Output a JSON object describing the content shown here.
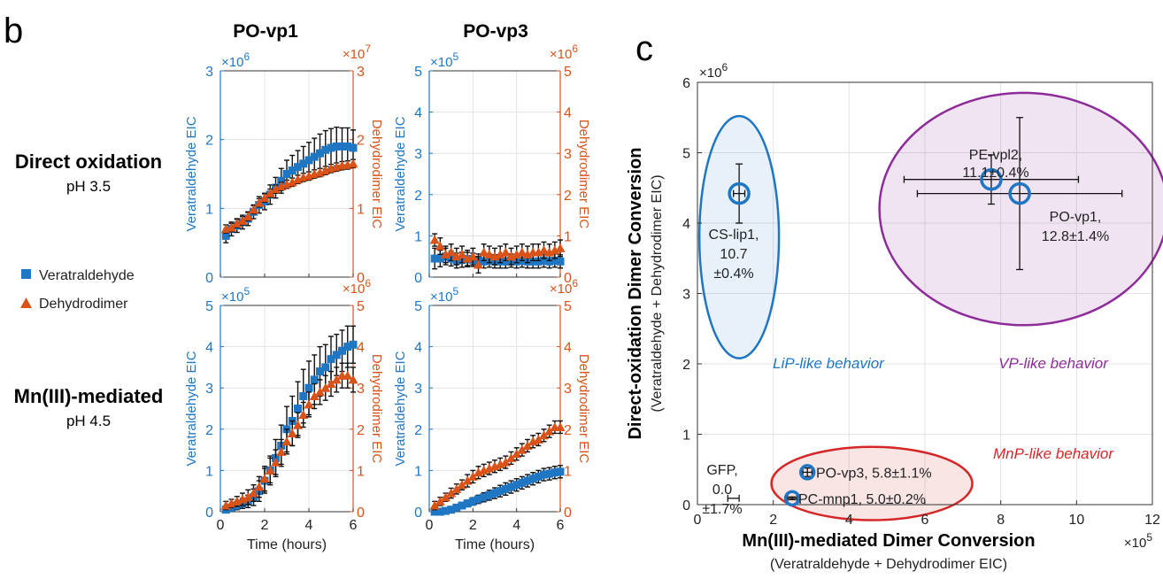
{
  "figure": {
    "panel_b_letter": "b",
    "panel_c_letter": "c",
    "row_labels": [
      {
        "title": "Direct oxidation",
        "sub": "pH 3.5"
      },
      {
        "title": "Mn(III)-mediated",
        "sub": "pH 4.5"
      }
    ],
    "legend": [
      {
        "label": "Veratraldehyde",
        "color": "#1f77c4",
        "marker": "square"
      },
      {
        "label": "Dehydrodimer",
        "color": "#d95319",
        "marker": "triangle"
      }
    ],
    "colors": {
      "left_axis": "#1f77c4",
      "right_axis": "#d95319",
      "grid": "#e3e3e3"
    }
  },
  "chart_data": [
    {
      "type": "scatter",
      "panel": "b",
      "title": "PO-vp1",
      "xlabel": "",
      "xlim": [
        0,
        6
      ],
      "ylabel": "Veratraldehyde EIC",
      "ylim": [
        0,
        3
      ],
      "y_multiplier": "×10^6",
      "yticks": [
        "0",
        "1",
        "2",
        "3"
      ],
      "y2label": "Dehydrodimer EIC",
      "y2lim": [
        0,
        3
      ],
      "y2_multiplier": "×10^7",
      "y2ticks": [
        "0",
        "1",
        "2",
        "3"
      ],
      "xticks": [],
      "series": [
        {
          "name": "Veratraldehyde",
          "axis": "left",
          "marker": "square",
          "x": [
            0.25,
            0.5,
            0.75,
            1,
            1.25,
            1.5,
            1.75,
            2,
            2.25,
            2.5,
            2.75,
            3,
            3.25,
            3.5,
            3.75,
            4,
            4.25,
            4.5,
            4.75,
            5,
            5.25,
            5.5,
            5.75,
            6
          ],
          "y": [
            0.6,
            0.7,
            0.75,
            0.8,
            0.85,
            0.95,
            1.05,
            1.1,
            1.2,
            1.3,
            1.4,
            1.5,
            1.55,
            1.6,
            1.65,
            1.7,
            1.75,
            1.8,
            1.85,
            1.88,
            1.9,
            1.9,
            1.9,
            1.88
          ],
          "err": [
            0.1,
            0.1,
            0.1,
            0.1,
            0.1,
            0.1,
            0.12,
            0.12,
            0.14,
            0.15,
            0.18,
            0.2,
            0.22,
            0.24,
            0.25,
            0.26,
            0.27,
            0.28,
            0.28,
            0.28,
            0.28,
            0.27,
            0.27,
            0.26
          ]
        },
        {
          "name": "Dehydrodimer",
          "axis": "right",
          "marker": "triangle",
          "x": [
            0.25,
            0.5,
            0.75,
            1,
            1.25,
            1.5,
            1.75,
            2,
            2.25,
            2.5,
            2.75,
            3,
            3.25,
            3.5,
            3.75,
            4,
            4.25,
            4.5,
            4.75,
            5,
            5.25,
            5.5,
            5.75,
            6
          ],
          "y": [
            0.7,
            0.72,
            0.78,
            0.82,
            0.88,
            0.98,
            1.08,
            1.15,
            1.22,
            1.28,
            1.32,
            1.35,
            1.38,
            1.42,
            1.45,
            1.47,
            1.5,
            1.52,
            1.55,
            1.58,
            1.6,
            1.62,
            1.63,
            1.65
          ],
          "err": [
            0.06,
            0.06,
            0.06,
            0.06,
            0.06,
            0.06,
            0.06,
            0.06,
            0.06,
            0.06,
            0.06,
            0.06,
            0.06,
            0.06,
            0.06,
            0.06,
            0.06,
            0.06,
            0.06,
            0.06,
            0.06,
            0.06,
            0.06,
            0.06
          ]
        }
      ]
    },
    {
      "type": "scatter",
      "panel": "b",
      "title": "PO-vp3",
      "xlabel": "",
      "xlim": [
        0,
        6
      ],
      "ylabel": "Veratraldehyde EIC",
      "ylim": [
        0,
        5
      ],
      "y_multiplier": "×10^5",
      "yticks": [
        "0",
        "1",
        "2",
        "3",
        "4",
        "5"
      ],
      "y2label": "Dehydrodimer EIC",
      "y2lim": [
        0,
        5
      ],
      "y2_multiplier": "×10^6",
      "y2ticks": [
        "0",
        "1",
        "2",
        "3",
        "4",
        "5"
      ],
      "xticks": [],
      "series": [
        {
          "name": "Veratraldehyde",
          "axis": "left",
          "marker": "square",
          "x": [
            0.25,
            0.5,
            0.75,
            1,
            1.25,
            1.5,
            1.75,
            2,
            2.25,
            2.5,
            2.75,
            3,
            3.25,
            3.5,
            3.75,
            4,
            4.25,
            4.5,
            4.75,
            5,
            5.25,
            5.5,
            5.75,
            6
          ],
          "y": [
            0.45,
            0.45,
            0.5,
            0.45,
            0.4,
            0.42,
            0.44,
            0.42,
            0.4,
            0.38,
            0.4,
            0.38,
            0.38,
            0.38,
            0.4,
            0.38,
            0.4,
            0.38,
            0.38,
            0.38,
            0.4,
            0.38,
            0.4,
            0.38
          ],
          "err": [
            0.25,
            0.2,
            0.2,
            0.18,
            0.18,
            0.18,
            0.16,
            0.16,
            0.16,
            0.16,
            0.16,
            0.16,
            0.16,
            0.16,
            0.16,
            0.16,
            0.16,
            0.16,
            0.16,
            0.16,
            0.16,
            0.16,
            0.16,
            0.16
          ]
        },
        {
          "name": "Dehydrodimer",
          "axis": "right",
          "marker": "triangle",
          "x": [
            0.25,
            0.5,
            0.75,
            1,
            1.25,
            1.5,
            1.75,
            2,
            2.25,
            2.5,
            2.75,
            3,
            3.25,
            3.5,
            3.75,
            4,
            4.25,
            4.5,
            4.75,
            5,
            5.25,
            5.5,
            5.75,
            6
          ],
          "y": [
            0.9,
            0.75,
            0.55,
            0.6,
            0.5,
            0.55,
            0.45,
            0.5,
            0.3,
            0.6,
            0.55,
            0.5,
            0.55,
            0.6,
            0.5,
            0.55,
            0.6,
            0.55,
            0.6,
            0.6,
            0.65,
            0.6,
            0.65,
            0.7
          ],
          "err": [
            0.15,
            0.2,
            0.2,
            0.2,
            0.2,
            0.2,
            0.2,
            0.2,
            0.2,
            0.2,
            0.2,
            0.2,
            0.2,
            0.2,
            0.2,
            0.2,
            0.2,
            0.2,
            0.2,
            0.2,
            0.2,
            0.2,
            0.2,
            0.2
          ]
        }
      ]
    },
    {
      "type": "scatter",
      "panel": "b",
      "title": "",
      "xlabel": "Time (hours)",
      "xlim": [
        0,
        6
      ],
      "xticks": [
        "0",
        "2",
        "4",
        "6"
      ],
      "ylabel": "Veratraldehyde EIC",
      "ylim": [
        0,
        5
      ],
      "y_multiplier": "×10^5",
      "yticks": [
        "0",
        "1",
        "2",
        "3",
        "4",
        "5"
      ],
      "y2label": "Dehydrodimer EIC",
      "y2lim": [
        0,
        5
      ],
      "y2_multiplier": "×10^6",
      "y2ticks": [
        "0",
        "1",
        "2",
        "3",
        "4",
        "5"
      ],
      "series": [
        {
          "name": "Veratraldehyde",
          "axis": "left",
          "marker": "square",
          "x": [
            0.25,
            0.5,
            0.75,
            1,
            1.25,
            1.5,
            1.75,
            2,
            2.25,
            2.5,
            2.75,
            3,
            3.25,
            3.5,
            3.75,
            4,
            4.25,
            4.5,
            4.75,
            5,
            5.25,
            5.5,
            5.75,
            6
          ],
          "y": [
            0.05,
            0.1,
            0.15,
            0.2,
            0.25,
            0.35,
            0.5,
            0.75,
            1.0,
            1.3,
            1.6,
            2.0,
            2.2,
            2.5,
            2.8,
            3.0,
            3.2,
            3.4,
            3.5,
            3.7,
            3.8,
            3.9,
            4.0,
            4.05
          ],
          "err": [
            0.05,
            0.08,
            0.1,
            0.12,
            0.15,
            0.2,
            0.25,
            0.3,
            0.35,
            0.45,
            0.5,
            0.55,
            0.6,
            0.65,
            0.65,
            0.65,
            0.6,
            0.6,
            0.55,
            0.55,
            0.5,
            0.5,
            0.5,
            0.45
          ]
        },
        {
          "name": "Dehydrodimer",
          "axis": "right",
          "marker": "triangle",
          "x": [
            0.25,
            0.5,
            0.75,
            1,
            1.25,
            1.5,
            1.75,
            2,
            2.25,
            2.5,
            2.75,
            3,
            3.25,
            3.5,
            3.75,
            4,
            4.25,
            4.5,
            4.75,
            5,
            5.25,
            5.5,
            5.75,
            6
          ],
          "y": [
            0.15,
            0.2,
            0.25,
            0.3,
            0.35,
            0.45,
            0.6,
            0.8,
            1.0,
            1.2,
            1.45,
            1.7,
            1.9,
            2.1,
            2.35,
            2.6,
            2.8,
            2.9,
            3.0,
            3.1,
            3.2,
            3.3,
            3.3,
            3.2
          ],
          "err": [
            0.1,
            0.1,
            0.12,
            0.15,
            0.18,
            0.2,
            0.25,
            0.3,
            0.3,
            0.3,
            0.3,
            0.3,
            0.3,
            0.3,
            0.3,
            0.3,
            0.3,
            0.3,
            0.3,
            0.3,
            0.3,
            0.3,
            0.3,
            0.3
          ]
        }
      ]
    },
    {
      "type": "scatter",
      "panel": "b",
      "title": "",
      "xlabel": "Time (hours)",
      "xlim": [
        0,
        6
      ],
      "xticks": [
        "0",
        "2",
        "4",
        "6"
      ],
      "ylabel": "Veratraldehyde EIC",
      "ylim": [
        0,
        5
      ],
      "y_multiplier": "×10^5",
      "yticks": [
        "0",
        "1",
        "2",
        "3",
        "4",
        "5"
      ],
      "y2label": "Dehydrodimer EIC",
      "y2lim": [
        0,
        5
      ],
      "y2_multiplier": "×10^6",
      "y2ticks": [
        "0",
        "1",
        "2",
        "3",
        "4",
        "5"
      ],
      "series": [
        {
          "name": "Veratraldehyde",
          "axis": "left",
          "marker": "square",
          "x": [
            0.25,
            0.5,
            0.75,
            1,
            1.25,
            1.5,
            1.75,
            2,
            2.25,
            2.5,
            2.75,
            3,
            3.25,
            3.5,
            3.75,
            4,
            4.25,
            4.5,
            4.75,
            5,
            5.25,
            5.5,
            5.75,
            6
          ],
          "y": [
            0.0,
            0.0,
            0.02,
            0.05,
            0.1,
            0.15,
            0.2,
            0.25,
            0.3,
            0.35,
            0.4,
            0.45,
            0.5,
            0.55,
            0.6,
            0.65,
            0.7,
            0.75,
            0.8,
            0.85,
            0.9,
            0.92,
            0.95,
            0.97
          ],
          "err": [
            0.05,
            0.05,
            0.05,
            0.06,
            0.06,
            0.07,
            0.08,
            0.09,
            0.1,
            0.11,
            0.12,
            0.13,
            0.14,
            0.15,
            0.15,
            0.15,
            0.15,
            0.15,
            0.15,
            0.15,
            0.15,
            0.15,
            0.15,
            0.15
          ]
        },
        {
          "name": "Dehydrodimer",
          "axis": "right",
          "marker": "triangle",
          "x": [
            0.25,
            0.5,
            0.75,
            1,
            1.25,
            1.5,
            1.75,
            2,
            2.25,
            2.5,
            2.75,
            3,
            3.25,
            3.5,
            3.75,
            4,
            4.25,
            4.5,
            4.75,
            5,
            5.25,
            5.5,
            5.75,
            6
          ],
          "y": [
            0.15,
            0.25,
            0.35,
            0.45,
            0.55,
            0.65,
            0.75,
            0.85,
            0.95,
            1.0,
            1.05,
            1.1,
            1.15,
            1.2,
            1.3,
            1.4,
            1.5,
            1.6,
            1.7,
            1.75,
            1.85,
            1.95,
            2.05,
            2.05
          ],
          "err": [
            0.1,
            0.1,
            0.1,
            0.12,
            0.12,
            0.12,
            0.15,
            0.15,
            0.15,
            0.15,
            0.15,
            0.15,
            0.15,
            0.15,
            0.15,
            0.15,
            0.15,
            0.15,
            0.15,
            0.15,
            0.15,
            0.15,
            0.15,
            0.15
          ]
        }
      ]
    },
    {
      "type": "scatter",
      "panel": "c",
      "title": "",
      "xlabel": "Mn(III)-mediated Dimer Conversion",
      "xlabel_sub": "(Veratraldehyde + Dehydrodimer EIC)",
      "ylabel": "Direct-oxidation Dimer Conversion",
      "ylabel_sub": "(Veratraldehyde + Dehydrodimer EIC)",
      "xlim": [
        0,
        12
      ],
      "ylim": [
        0,
        6
      ],
      "xticks": [
        "0",
        "2",
        "4",
        "6",
        "8",
        "10",
        "12"
      ],
      "yticks": [
        "0",
        "1",
        "2",
        "3",
        "4",
        "5",
        "6"
      ],
      "x_multiplier": "×10^5",
      "y_multiplier": "×10^6",
      "grid": true,
      "points": [
        {
          "name": "CS-lip1",
          "label": [
            "CS-lip1,",
            "10.7",
            "±0.4%"
          ],
          "x": 1.1,
          "y": 4.42,
          "xerr": 0.15,
          "yerr": 0.42,
          "color": "#1f77c4",
          "ring": "big"
        },
        {
          "name": "PE-vpl2",
          "label": [
            "PE-vpl2,",
            "11.1±0.4%"
          ],
          "x": 7.75,
          "y": 4.62,
          "xerr": 2.3,
          "yerr": 0.35,
          "color": "#1f77c4",
          "ring": "big"
        },
        {
          "name": "PO-vp1",
          "label": [
            "PO-vp1,",
            "12.8±1.4%"
          ],
          "x": 8.5,
          "y": 4.42,
          "xerr": 2.7,
          "yerr": 1.08,
          "color": "#1f77c4",
          "ring": "big"
        },
        {
          "name": "PO-vp3",
          "label": [
            "PO-vp3, 5.8±1.1%"
          ],
          "x": 2.9,
          "y": 0.46,
          "xerr": 0.12,
          "yerr": 0.06,
          "color": "#1f77c4",
          "ring": "small"
        },
        {
          "name": "PC-mnp1",
          "label": [
            "PC-mnp1, 5.0±0.2%"
          ],
          "x": 2.5,
          "y": 0.09,
          "xerr": 0.12,
          "yerr": 0.02,
          "color": "#1f77c4",
          "ring": "small"
        },
        {
          "name": "GFP",
          "label": [
            "GFP,",
            "0.0",
            "±1.7%"
          ],
          "x": 0.95,
          "y": 0.09,
          "xerr": 0.15,
          "yerr": 0.0,
          "color": "#000000",
          "ring": "none"
        }
      ],
      "regions": [
        {
          "label": "LiP-like behavior",
          "color": "#1f77c4",
          "fill": "rgba(31,119,196,0.10)",
          "cx": 1.1,
          "cy": 3.8,
          "rx": 1.05,
          "ry": 1.72
        },
        {
          "label": "VP-like behavior",
          "color": "#8e2c9a",
          "fill": "rgba(142,44,154,0.13)",
          "cx": 8.6,
          "cy": 4.2,
          "rx": 3.8,
          "ry": 1.65
        },
        {
          "label": "MnP-like behavior",
          "color": "#d62728",
          "fill": "rgba(214,39,40,0.12)",
          "cx": 4.6,
          "cy": 0.3,
          "rx": 2.65,
          "ry": 0.52
        }
      ]
    }
  ]
}
